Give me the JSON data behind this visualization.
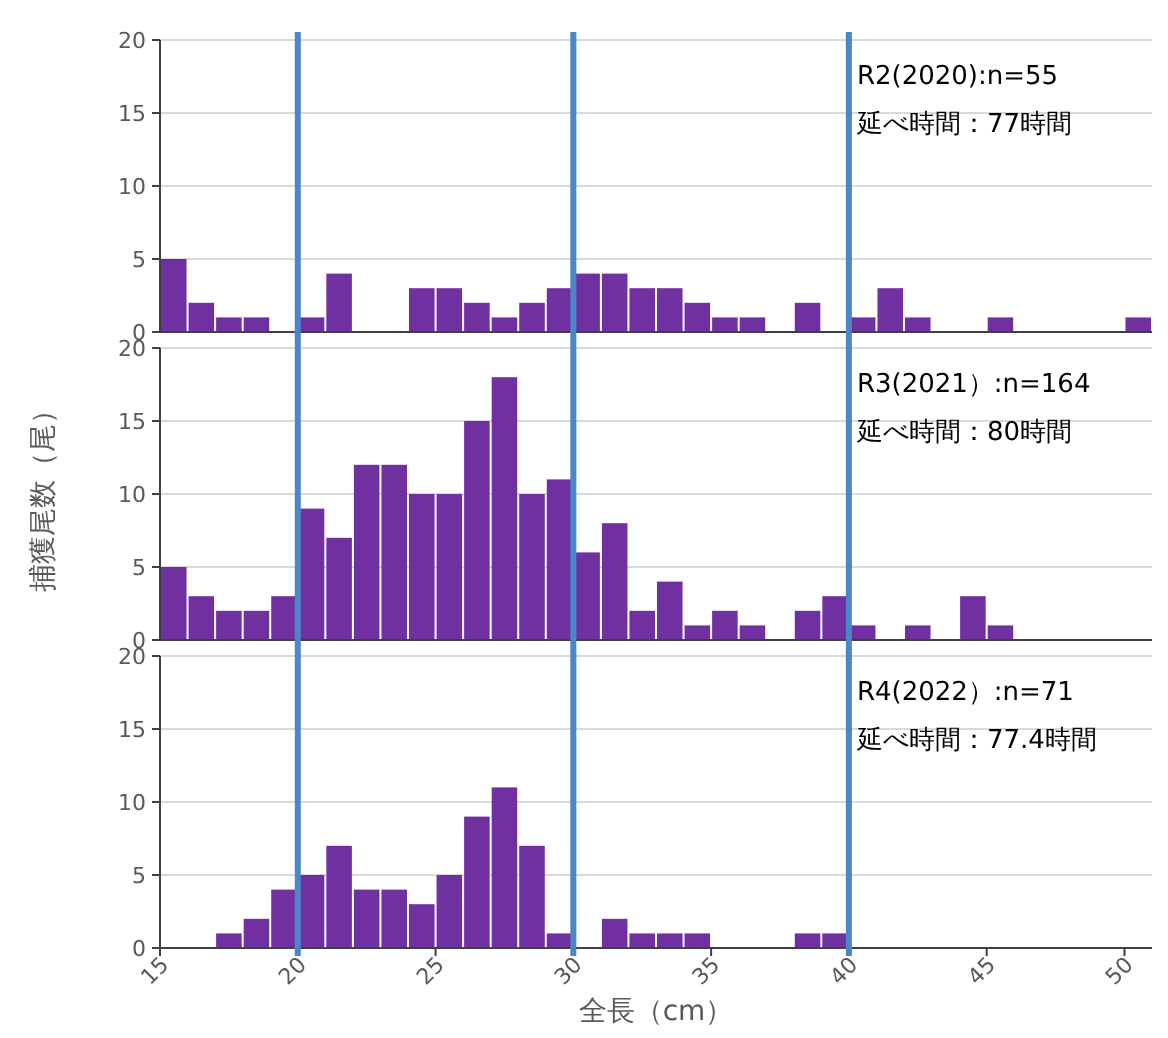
{
  "chart_data": [
    {
      "type": "histogram",
      "bins": [
        15,
        16,
        17,
        18,
        19,
        20,
        21,
        22,
        23,
        24,
        25,
        26,
        27,
        28,
        29,
        30,
        31,
        32,
        33,
        34,
        35,
        36,
        37,
        38,
        39,
        40,
        41,
        42,
        43,
        44,
        45,
        46,
        47,
        48,
        49,
        50,
        51
      ],
      "values": [
        5,
        2,
        1,
        1,
        0,
        1,
        4,
        0,
        0,
        3,
        3,
        2,
        1,
        2,
        3,
        4,
        4,
        3,
        3,
        2,
        1,
        1,
        0,
        2,
        0,
        1,
        3,
        1,
        0,
        0,
        1,
        0,
        0,
        0,
        0,
        1
      ],
      "color": "#7030a0",
      "xlim": [
        15,
        51
      ],
      "ylim": [
        0,
        20
      ],
      "yticks": [
        0,
        5,
        10,
        15,
        20
      ],
      "grid": "y",
      "tick_labels": "y",
      "ref_lines": [
        {
          "axis": "x",
          "value": 20,
          "color": "#4a86c8"
        },
        {
          "axis": "x",
          "value": 30,
          "color": "#4a86c8"
        },
        {
          "axis": "x",
          "value": 40,
          "color": "#4a86c8"
        }
      ],
      "annotations": [
        "R2(2020):n=55",
        "延べ時間：77時間"
      ]
    },
    {
      "type": "histogram",
      "bins": [
        15,
        16,
        17,
        18,
        19,
        20,
        21,
        22,
        23,
        24,
        25,
        26,
        27,
        28,
        29,
        30,
        31,
        32,
        33,
        34,
        35,
        36,
        37,
        38,
        39,
        40,
        41,
        42,
        43,
        44,
        45,
        46,
        47,
        48,
        49,
        50,
        51
      ],
      "values": [
        5,
        3,
        2,
        2,
        3,
        9,
        7,
        12,
        12,
        10,
        10,
        15,
        18,
        10,
        11,
        6,
        8,
        2,
        4,
        1,
        2,
        1,
        0,
        2,
        3,
        1,
        0,
        1,
        0,
        3,
        1,
        0,
        0,
        0,
        0,
        0
      ],
      "color": "#7030a0",
      "xlim": [
        15,
        51
      ],
      "ylim": [
        0,
        20
      ],
      "yticks": [
        0,
        5,
        10,
        15,
        20
      ],
      "grid": "y",
      "tick_labels": "y",
      "ylabel": "捕獲尾数（尾）",
      "ref_lines": [
        {
          "axis": "x",
          "value": 20,
          "color": "#4a86c8"
        },
        {
          "axis": "x",
          "value": 30,
          "color": "#4a86c8"
        },
        {
          "axis": "x",
          "value": 40,
          "color": "#4a86c8"
        }
      ],
      "annotations": [
        "R3(2021）:n=164",
        "延べ時間：80時間"
      ]
    },
    {
      "type": "histogram",
      "bins": [
        15,
        16,
        17,
        18,
        19,
        20,
        21,
        22,
        23,
        24,
        25,
        26,
        27,
        28,
        29,
        30,
        31,
        32,
        33,
        34,
        35,
        36,
        37,
        38,
        39,
        40,
        41,
        42,
        43,
        44,
        45,
        46,
        47,
        48,
        49,
        50,
        51
      ],
      "values": [
        0,
        0,
        1,
        2,
        4,
        5,
        7,
        4,
        4,
        3,
        5,
        9,
        11,
        7,
        1,
        0,
        2,
        1,
        1,
        1,
        0,
        0,
        0,
        1,
        1,
        0,
        0,
        0,
        0,
        0,
        0,
        0,
        0,
        0,
        0,
        0
      ],
      "color": "#7030a0",
      "xlim": [
        15,
        51
      ],
      "ylim": [
        0,
        20
      ],
      "yticks": [
        0,
        5,
        10,
        15,
        20
      ],
      "xticks": [
        15,
        20,
        25,
        30,
        35,
        40,
        45,
        50
      ],
      "grid": "y",
      "xlabel": "全長（cm）",
      "ref_lines": [
        {
          "axis": "x",
          "value": 20,
          "color": "#4a86c8"
        },
        {
          "axis": "x",
          "value": 30,
          "color": "#4a86c8"
        },
        {
          "axis": "x",
          "value": 40,
          "color": "#4a86c8"
        }
      ],
      "annotations": [
        "R4(2022）:n=71",
        "延べ時間：77.4時間"
      ]
    }
  ]
}
